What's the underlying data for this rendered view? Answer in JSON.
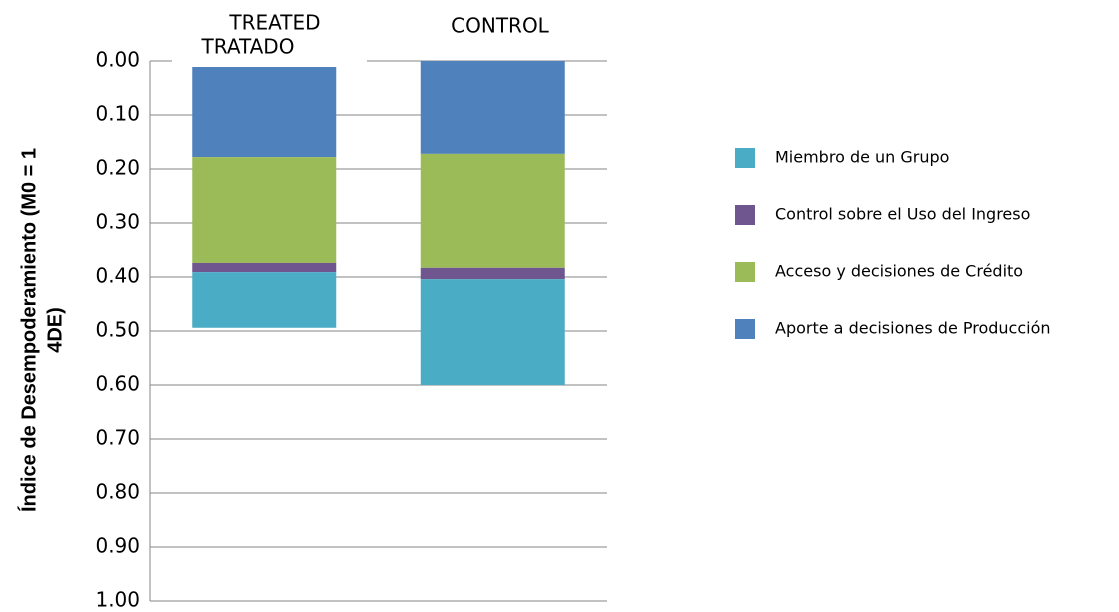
{
  "chart_data": {
    "type": "stacked_bar",
    "y_label": [
      "Índice de Desempoderamiento (M0 = 1",
      "4DE)"
    ],
    "annotation": "TREATED",
    "categories": [
      "TRATADO",
      "CONTROL"
    ],
    "series": [
      {
        "name": "Aporte a decisiones de Producción",
        "color": "#4f81bd",
        "values": [
          0.178,
          0.172
        ]
      },
      {
        "name": "Acceso y decisiones de Crédito",
        "color": "#9bbb59",
        "values": [
          0.196,
          0.211
        ]
      },
      {
        "name": "Control sobre el Uso del Ingreso",
        "color": "#6f568f",
        "values": [
          0.017,
          0.021
        ]
      },
      {
        "name": "Miembro de un Grupo",
        "color": "#4bacc6",
        "values": [
          0.103,
          0.196
        ]
      }
    ],
    "ylim": [
      0,
      1
    ],
    "y_inverted": true,
    "yticks": [
      {
        "value": 0,
        "label": "0.00"
      },
      {
        "value": 0.1,
        "label": "0.10"
      },
      {
        "value": 0.2,
        "label": "0.20"
      },
      {
        "value": 0.3,
        "label": "0.30"
      },
      {
        "value": 0.4,
        "label": "0.40"
      },
      {
        "value": 0.5,
        "label": "0.50"
      },
      {
        "value": 0.6,
        "label": "0.60"
      },
      {
        "value": 0.7,
        "label": "0.70"
      },
      {
        "value": 0.8,
        "label": "0.80"
      },
      {
        "value": 0.9,
        "label": "0.90"
      },
      {
        "value": 1,
        "label": "1.00"
      }
    ],
    "grid": true,
    "legend_position": "right",
    "legend_reversed": true
  }
}
